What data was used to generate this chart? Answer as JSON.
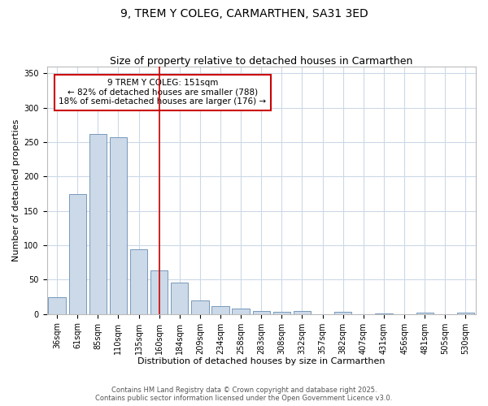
{
  "title": "9, TREM Y COLEG, CARMARTHEN, SA31 3ED",
  "subtitle": "Size of property relative to detached houses in Carmarthen",
  "xlabel": "Distribution of detached houses by size in Carmarthen",
  "ylabel": "Number of detached properties",
  "bar_labels": [
    "36sqm",
    "61sqm",
    "85sqm",
    "110sqm",
    "135sqm",
    "160sqm",
    "184sqm",
    "209sqm",
    "234sqm",
    "258sqm",
    "283sqm",
    "308sqm",
    "332sqm",
    "357sqm",
    "382sqm",
    "407sqm",
    "431sqm",
    "456sqm",
    "481sqm",
    "505sqm",
    "530sqm"
  ],
  "bar_values": [
    25,
    175,
    262,
    257,
    94,
    64,
    46,
    20,
    11,
    8,
    4,
    3,
    5,
    0,
    3,
    0,
    1,
    0,
    2,
    0,
    2
  ],
  "bar_color": "#ccd9e8",
  "bar_edge_color": "#7799bb",
  "vline_x": 5,
  "vline_color": "#cc0000",
  "annotation_title": "9 TREM Y COLEG: 151sqm",
  "annotation_line1": "← 82% of detached houses are smaller (788)",
  "annotation_line2": "18% of semi-detached houses are larger (176) →",
  "annotation_box_facecolor": "#ffffff",
  "annotation_box_edgecolor": "#cc0000",
  "ylim": [
    0,
    360
  ],
  "yticks": [
    0,
    50,
    100,
    150,
    200,
    250,
    300,
    350
  ],
  "fig_background": "#ffffff",
  "axes_background": "#ffffff",
  "grid_color": "#ccd9e8",
  "footer1": "Contains HM Land Registry data © Crown copyright and database right 2025.",
  "footer2": "Contains public sector information licensed under the Open Government Licence v3.0.",
  "title_fontsize": 10,
  "subtitle_fontsize": 9,
  "tick_fontsize": 7,
  "axis_label_fontsize": 8,
  "annotation_fontsize": 7.5,
  "footer_fontsize": 6
}
